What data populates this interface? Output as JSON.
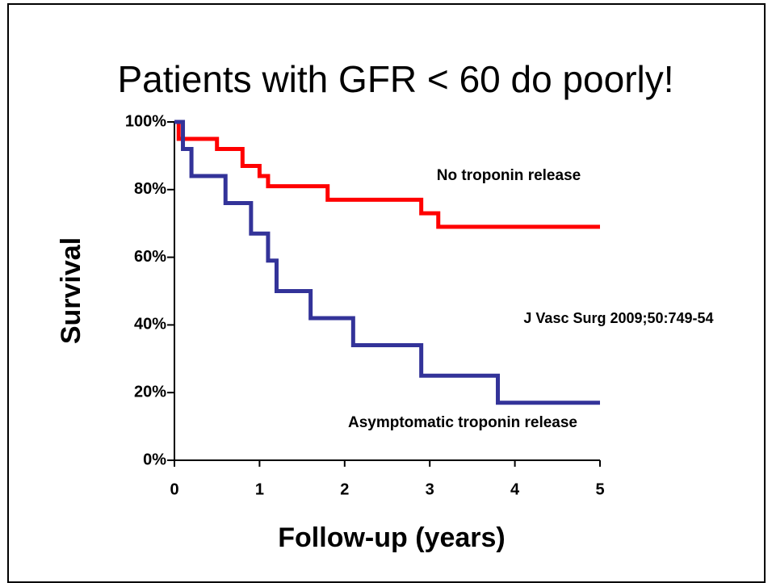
{
  "chart_data": {
    "type": "line",
    "step": "post",
    "title": "Patients with GFR < 60 do poorly!",
    "x_label": "Follow-up (years)",
    "y_label": "Survival",
    "annotation": "J Vasc Surg 2009;50:749-54",
    "xlim": [
      0,
      5
    ],
    "xticks": [
      0,
      1,
      2,
      3,
      4,
      5
    ],
    "ylim": [
      0,
      100
    ],
    "yticks": [
      {
        "value": 0,
        "label": "0%"
      },
      {
        "value": 20,
        "label": "20%"
      },
      {
        "value": 40,
        "label": "40%"
      },
      {
        "value": 60,
        "label": "60%"
      },
      {
        "value": 80,
        "label": "80%"
      },
      {
        "value": 100,
        "label": "100%"
      }
    ],
    "series": [
      {
        "name": "No troponin release",
        "color": "#ff0000",
        "x": [
          0,
          0.05,
          0.5,
          0.8,
          1.0,
          1.1,
          1.8,
          2.9,
          3.1,
          5
        ],
        "values": [
          100,
          95,
          92,
          87,
          84,
          81,
          77,
          73,
          69,
          69
        ]
      },
      {
        "name": "Asymptomatic troponin release",
        "color": "#333399",
        "x": [
          0,
          0.1,
          0.2,
          0.6,
          0.9,
          1.1,
          1.2,
          1.6,
          2.1,
          2.9,
          3.8,
          5
        ],
        "values": [
          100,
          92,
          84,
          76,
          67,
          59,
          50,
          42,
          34,
          25,
          17,
          17
        ]
      }
    ]
  }
}
